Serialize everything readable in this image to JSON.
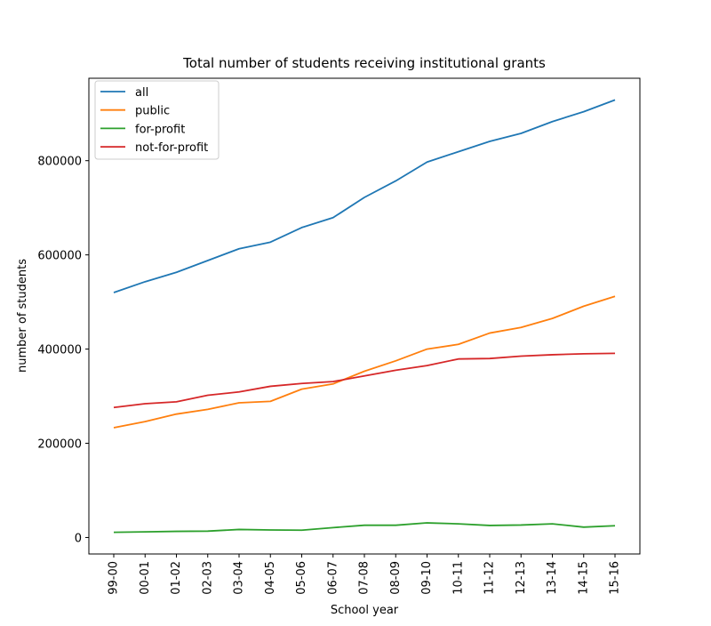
{
  "chart_data": {
    "type": "line",
    "title": "Total number of students receiving institutional grants",
    "xlabel": "School year",
    "ylabel": "number of students",
    "categories": [
      "99-00",
      "00-01",
      "01-02",
      "02-03",
      "03-04",
      "04-05",
      "05-06",
      "06-07",
      "07-08",
      "08-09",
      "09-10",
      "10-11",
      "11-12",
      "12-13",
      "13-14",
      "14-15",
      "15-16"
    ],
    "ylim": [
      -35000,
      975000
    ],
    "yticks": [
      0,
      200000,
      400000,
      600000,
      800000
    ],
    "ytick_labels": [
      "0",
      "200000",
      "400000",
      "600000",
      "800000"
    ],
    "grid": false,
    "legend_position": "top-left",
    "series": [
      {
        "name": "all",
        "color": "#1f77b4",
        "values": [
          520000,
          543000,
          563000,
          588000,
          613000,
          627000,
          658000,
          679000,
          722000,
          757000,
          797000,
          819000,
          841000,
          858000,
          883000,
          904000,
          929000
        ]
      },
      {
        "name": "public",
        "color": "#ff7f0e",
        "values": [
          233000,
          246000,
          262000,
          272000,
          286000,
          289000,
          315000,
          326000,
          353000,
          375000,
          400000,
          410000,
          434000,
          446000,
          465000,
          491000,
          512000
        ]
      },
      {
        "name": "for-profit",
        "color": "#2ca02c",
        "values": [
          11000,
          12000,
          13000,
          13500,
          17000,
          16000,
          15500,
          21000,
          26000,
          26000,
          31000,
          29000,
          25500,
          26500,
          29000,
          22000,
          25000
        ]
      },
      {
        "name": "not-for-profit",
        "color": "#d62728",
        "values": [
          276000,
          284000,
          288000,
          302000,
          309000,
          321000,
          327000,
          331000,
          343000,
          355000,
          365000,
          379000,
          380000,
          385000,
          388000,
          390000,
          391000
        ]
      }
    ]
  }
}
